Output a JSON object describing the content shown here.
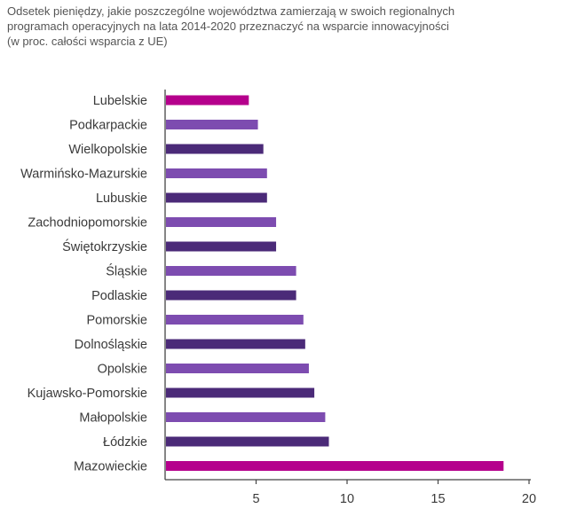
{
  "title_lines": [
    "Odsetek pieniędzy, jakie poszczególne województwa zamierzają w swoich regionalnych",
    "programach operacyjnych na lata 2014-2020 przeznaczyć na wsparcie innowacyjności",
    "(w proc. całości wsparcia z UE)"
  ],
  "colors": {
    "highlight": "#b5008c",
    "light": "#7d4cb0",
    "dark": "#4b2a78"
  },
  "chart_data": {
    "type": "bar",
    "orientation": "horizontal",
    "title": "Odsetek pieniędzy, jakie poszczególne województwa zamierzają w swoich regionalnych programach operacyjnych na lata 2014-2020 przeznaczyć na wsparcie innowacyjności (w proc. całości wsparcia z UE)",
    "categories": [
      "Lubelskie",
      "Podkarpackie",
      "Wielkopolskie",
      "Warmińsko-Mazurskie",
      "Lubuskie",
      "Zachodniopomorskie",
      "Świętokrzyskie",
      "Śląskie",
      "Podlaskie",
      "Pomorskie",
      "Dolnośląskie",
      "Opolskie",
      "Kujawsko-Pomorskie",
      "Małopolskie",
      "Łódzkie",
      "Mazowieckie"
    ],
    "values": [
      4.6,
      5.1,
      5.4,
      5.6,
      5.6,
      6.1,
      6.1,
      7.2,
      7.2,
      7.6,
      7.7,
      7.9,
      8.2,
      8.8,
      9.0,
      18.6
    ],
    "bar_colors": [
      "highlight",
      "light",
      "dark",
      "light",
      "dark",
      "light",
      "dark",
      "light",
      "dark",
      "light",
      "dark",
      "light",
      "dark",
      "light",
      "dark",
      "highlight"
    ],
    "xlim": [
      0,
      20
    ],
    "xticks": [
      "5",
      "10",
      "15",
      "20"
    ],
    "xtick_values": [
      5,
      10,
      15,
      20
    ],
    "xlabel": "",
    "ylabel": "",
    "grid": false,
    "legend": "none"
  }
}
